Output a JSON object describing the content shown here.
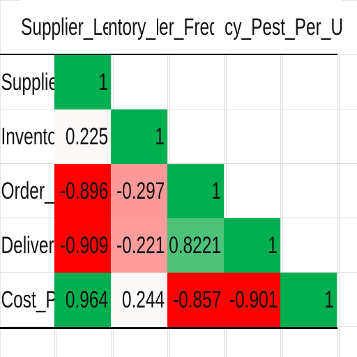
{
  "headers": [
    "Supplier_Lead",
    "Inventory_Lev",
    "Order_Frequency",
    "Delivery_Perfor",
    "Cost_Per_Unit"
  ],
  "header_visible": [
    "Supplier_Lead",
    "ntory_Le",
    "er_Frequ",
    "cy_Perfor",
    "st_Per_Unit"
  ],
  "row_labels": [
    "Supplier",
    "Inventor",
    "Order_Fr",
    "Delivery",
    "Cost_Per"
  ],
  "matrix": [
    [
      "1",
      "",
      "",
      "",
      ""
    ],
    [
      "0.225",
      "1",
      "",
      "",
      ""
    ],
    [
      "-0.896",
      "-0.297",
      "1",
      "",
      ""
    ],
    [
      "-0.909",
      "-0.221",
      "0.8221",
      "1",
      ""
    ],
    [
      "0.964",
      "0.244",
      "-0.857",
      "-0.901",
      "1"
    ]
  ],
  "colors": {
    "strong_positive": "#00b050",
    "medium_positive": "#4cc27a",
    "weak_positive": "#fbf8f8",
    "weak_negative": "#ff9c9c",
    "medium_negative": "#ff9999",
    "strong_negative": "#ff0000",
    "neutral": "#ffffff"
  }
}
